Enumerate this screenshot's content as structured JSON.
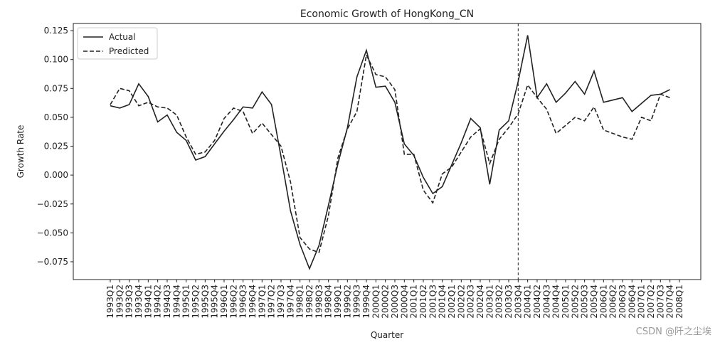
{
  "chart_data": {
    "type": "line",
    "title": "Economic Growth of HongKong_CN",
    "x_label": "Quarter",
    "y_label": "Growth Rate",
    "categories": [
      "1993Q1",
      "1993Q2",
      "1993Q3",
      "1993Q4",
      "1994Q1",
      "1994Q2",
      "1994Q3",
      "1994Q4",
      "1995Q1",
      "1995Q2",
      "1995Q3",
      "1995Q4",
      "1996Q1",
      "1996Q2",
      "1996Q3",
      "1996Q4",
      "1997Q1",
      "1997Q2",
      "1997Q3",
      "1997Q4",
      "1998Q1",
      "1998Q2",
      "1998Q3",
      "1998Q4",
      "1999Q1",
      "1999Q2",
      "1999Q3",
      "1999Q4",
      "2000Q1",
      "2000Q2",
      "2000Q3",
      "2000Q4",
      "2001Q1",
      "2001Q2",
      "2001Q3",
      "2001Q4",
      "2002Q1",
      "2002Q2",
      "2002Q3",
      "2002Q4",
      "2003Q1",
      "2003Q2",
      "2003Q3",
      "2003Q4",
      "2004Q1",
      "2004Q2",
      "2004Q3",
      "2004Q4",
      "2005Q1",
      "2005Q2",
      "2005Q3",
      "2005Q4",
      "2006Q1",
      "2006Q2",
      "2006Q3",
      "2006Q4",
      "2007Q1",
      "2007Q2",
      "2007Q3",
      "2007Q4",
      "2008Q1"
    ],
    "series": [
      {
        "name": "Actual",
        "color": "#222222",
        "dash": "solid",
        "values": [
          0.06,
          0.058,
          0.061,
          0.079,
          0.068,
          0.046,
          0.052,
          0.037,
          0.03,
          0.013,
          0.016,
          0.027,
          0.038,
          0.048,
          0.059,
          0.058,
          0.072,
          0.061,
          0.016,
          -0.031,
          -0.06,
          -0.081,
          -0.061,
          -0.026,
          0.01,
          0.041,
          0.085,
          0.108,
          0.076,
          0.077,
          0.063,
          0.027,
          0.017,
          -0.002,
          -0.016,
          -0.01,
          0.009,
          0.028,
          0.049,
          0.041,
          -0.008,
          0.039,
          0.047,
          0.081,
          0.121,
          0.067,
          0.079,
          0.063,
          0.071,
          0.081,
          0.07,
          0.09,
          0.063,
          0.065,
          0.067,
          0.055,
          0.062,
          0.069,
          0.07,
          0.074,
          null
        ]
      },
      {
        "name": "Predicted",
        "color": "#222222",
        "dash": "dashed",
        "values": [
          0.061,
          0.075,
          0.073,
          0.06,
          0.063,
          0.059,
          0.058,
          0.052,
          0.033,
          0.018,
          0.02,
          0.03,
          0.049,
          0.058,
          0.055,
          0.036,
          0.045,
          0.035,
          0.025,
          -0.006,
          -0.054,
          -0.064,
          -0.067,
          -0.035,
          0.015,
          0.04,
          0.055,
          0.104,
          0.087,
          0.085,
          0.074,
          0.018,
          0.018,
          -0.013,
          -0.024,
          0.001,
          0.007,
          0.02,
          0.033,
          0.04,
          0.01,
          0.031,
          0.041,
          0.053,
          0.078,
          0.067,
          0.057,
          0.036,
          0.043,
          0.05,
          0.047,
          0.059,
          0.039,
          0.036,
          0.033,
          0.031,
          0.05,
          0.047,
          0.07,
          0.067,
          null
        ]
      }
    ],
    "vline": {
      "x": "2003Q4",
      "color": "#222222",
      "dash": "dashed"
    },
    "ylim": [
      -0.0904,
      0.1312
    ],
    "yticks": [
      {
        "value": -0.075,
        "label": "−0.075"
      },
      {
        "value": -0.05,
        "label": "−0.050"
      },
      {
        "value": -0.025,
        "label": "−0.025"
      },
      {
        "value": 0,
        "label": "0.000"
      },
      0.025,
      {
        "value": 0.05,
        "label": "0.050"
      },
      0.075,
      {
        "value": 0.1,
        "label": "0.100"
      },
      0.125
    ],
    "legend": "upper left",
    "watermark": "CSDN @阡之尘埃"
  }
}
